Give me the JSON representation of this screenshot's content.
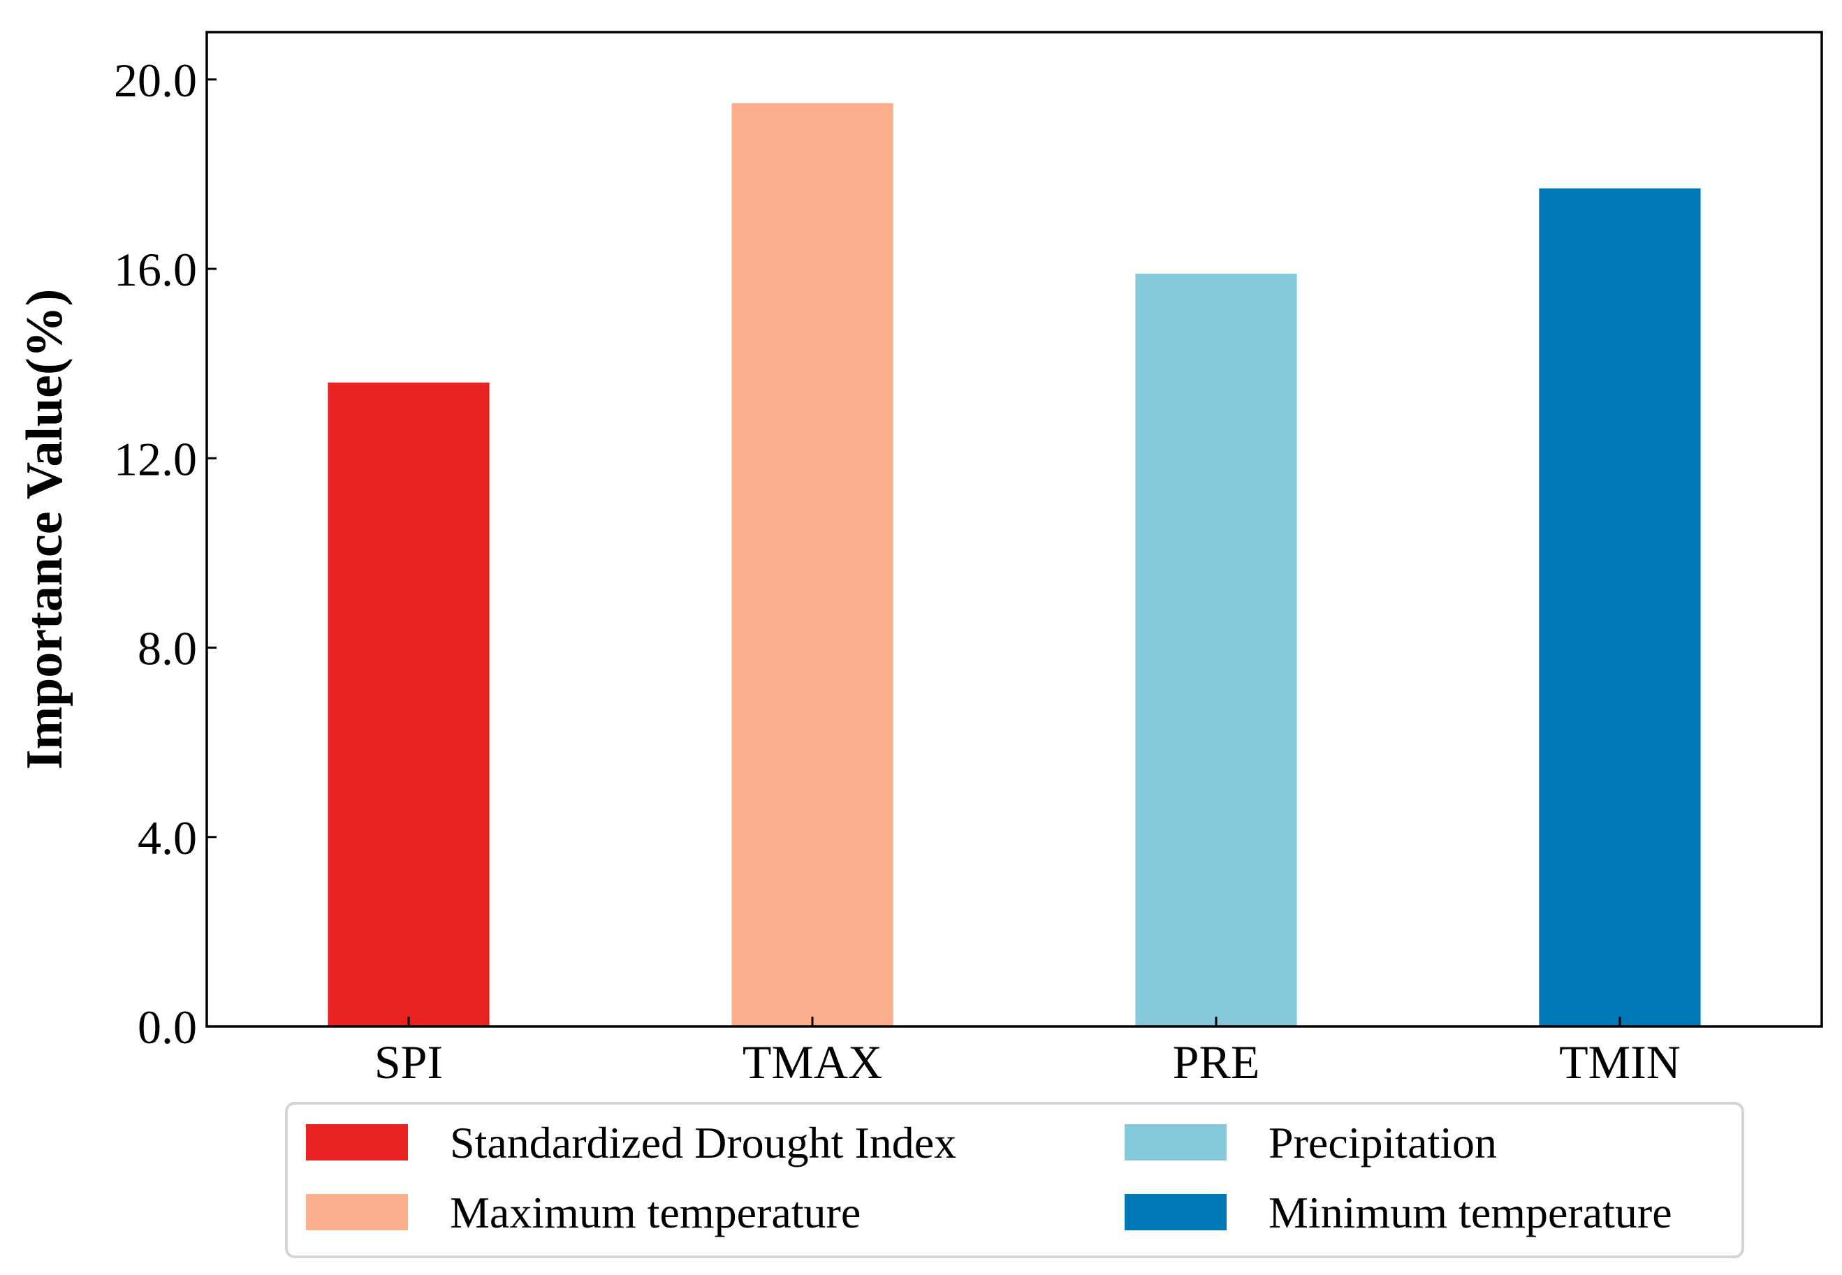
{
  "chart_data": {
    "type": "bar",
    "title": "",
    "xlabel": "",
    "ylabel": "Importance Value(%)",
    "categories": [
      "SPI",
      "TMAX",
      "PRE",
      "TMIN"
    ],
    "values": [
      13.6,
      19.5,
      15.9,
      17.7
    ],
    "ylim": [
      0,
      21
    ],
    "yticks": [
      {
        "value": 0,
        "label": "0.0"
      },
      {
        "value": 4,
        "label": "4.0"
      },
      {
        "value": 8,
        "label": "8.0"
      },
      {
        "value": 12,
        "label": "12.0"
      },
      {
        "value": 16,
        "label": "16.0"
      },
      {
        "value": 20,
        "label": "20.0"
      }
    ],
    "grid": false,
    "colors": [
      "#e82220",
      "#fcaf8c",
      "#86c9da",
      "#0077b6"
    ],
    "legend": {
      "placement": "bottom-center",
      "columns": 2,
      "entries": [
        {
          "label": "Standardized Drought Index",
          "color": "#e82220"
        },
        {
          "label": "Maximum temperature",
          "color": "#fcaf8c"
        },
        {
          "label": "Precipitation",
          "color": "#86c9da"
        },
        {
          "label": "Minimum temperature",
          "color": "#0077b6"
        }
      ]
    }
  }
}
